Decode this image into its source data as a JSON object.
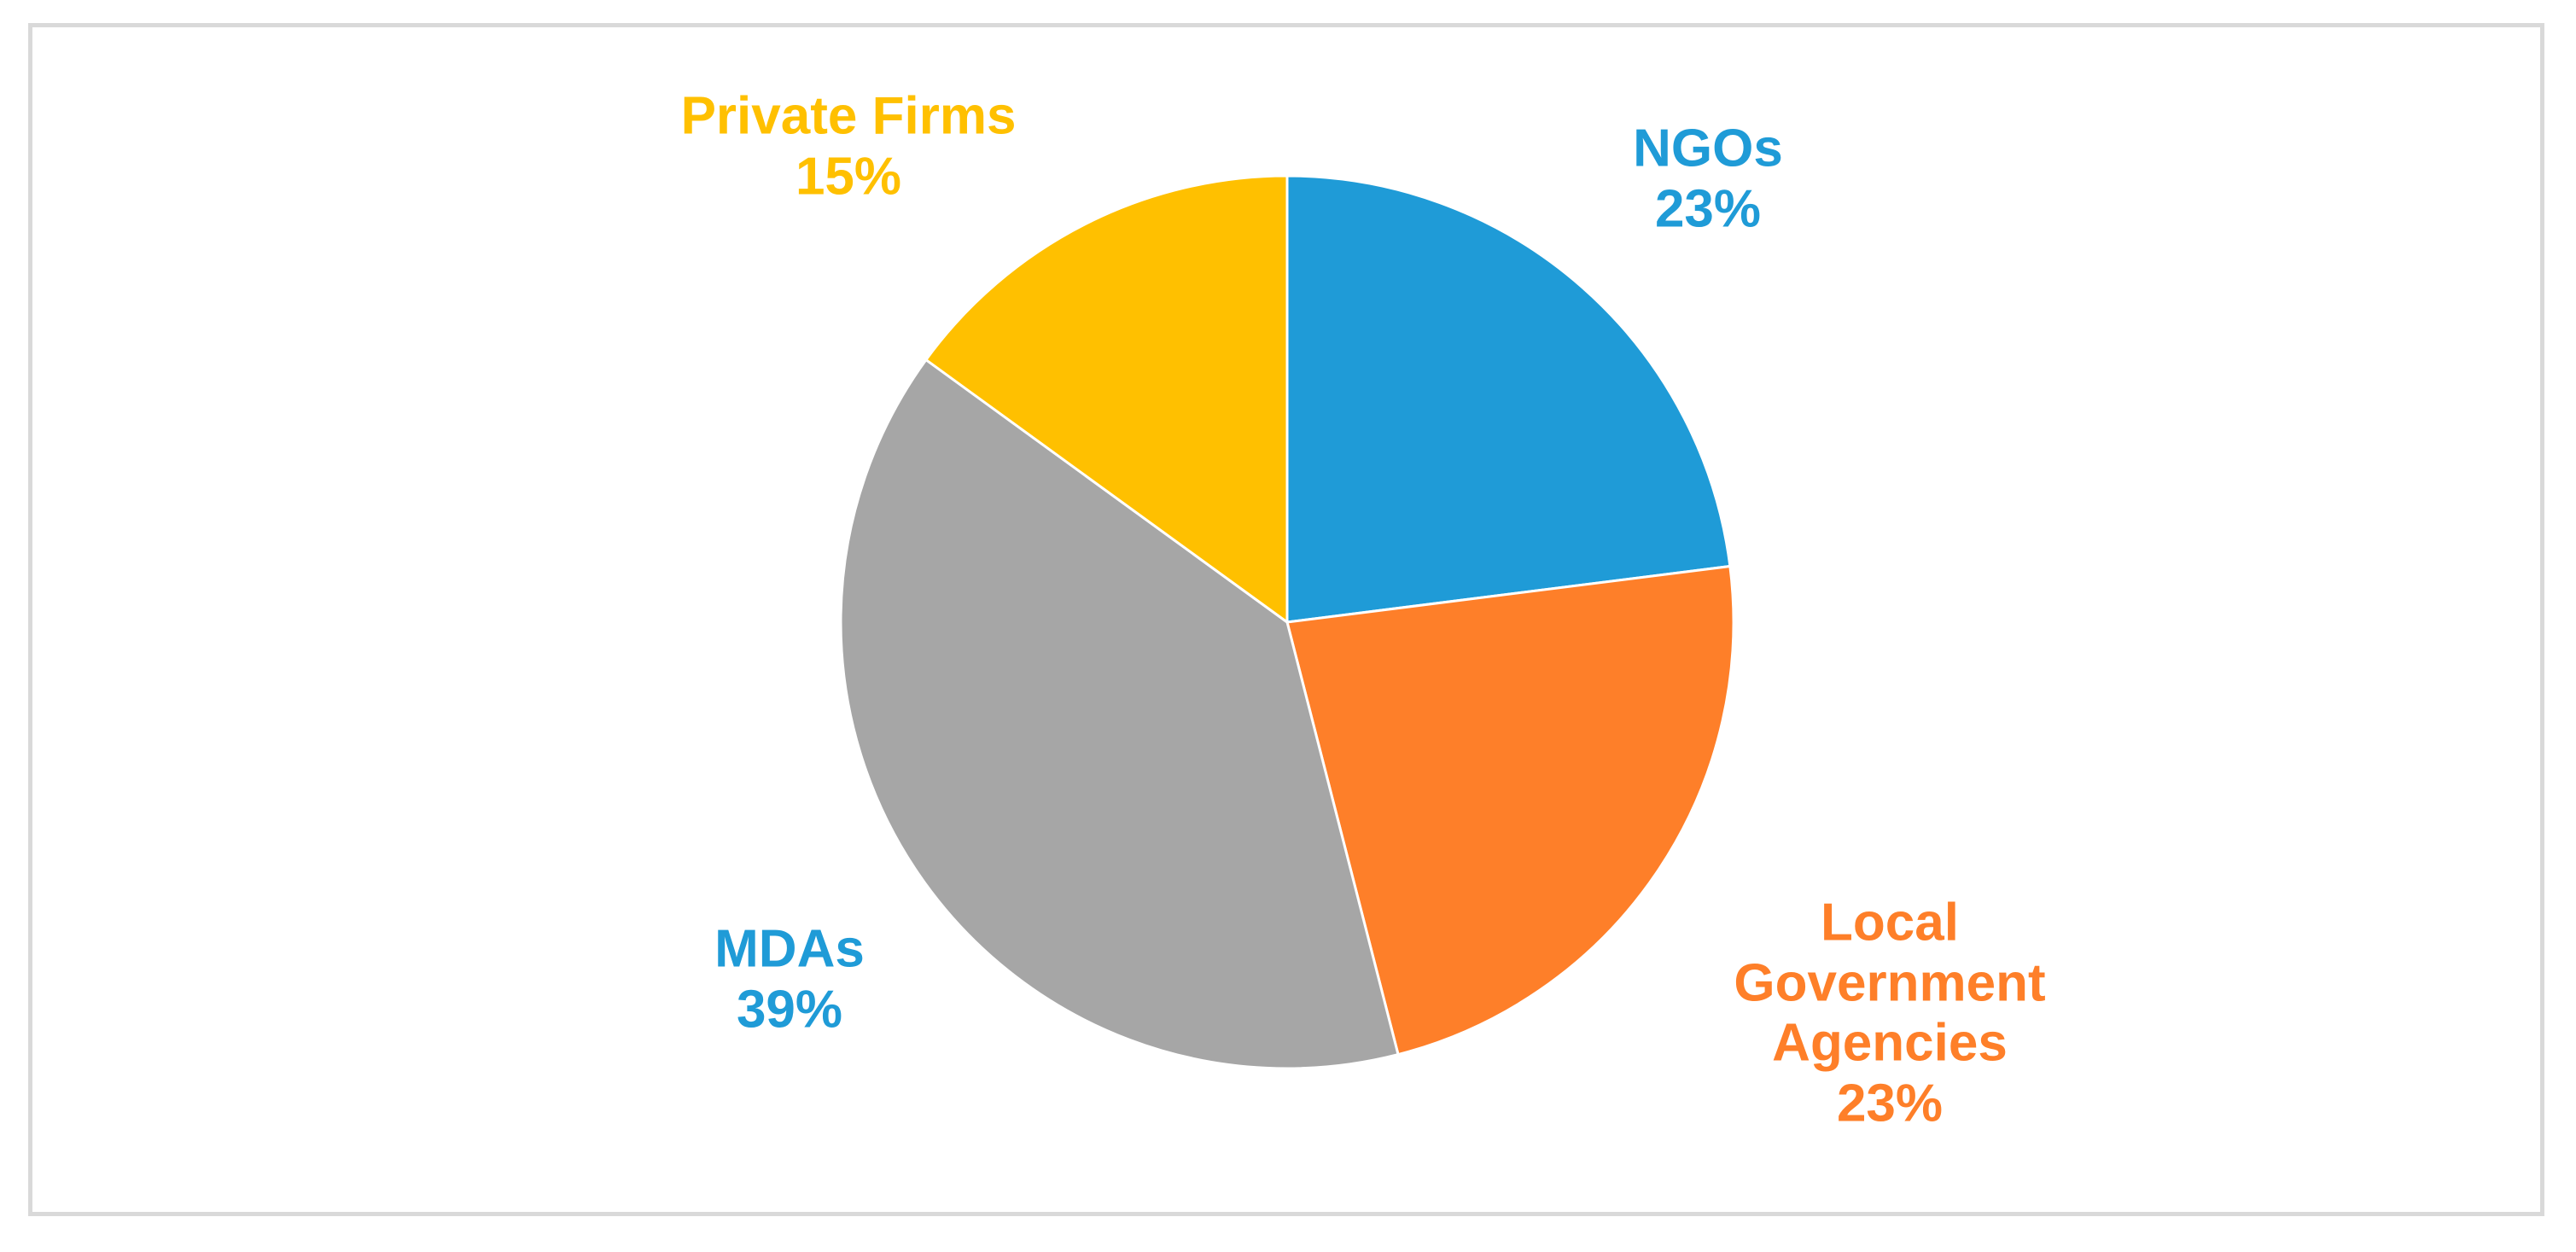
{
  "chart_data": {
    "type": "pie",
    "title": "",
    "start_angle_deg": 0,
    "direction": "clockwise",
    "slices": [
      {
        "label": "NGOs",
        "label_lines": [
          "NGOs"
        ],
        "percent_text": "23%",
        "value": 23,
        "color": "#1f9bd7",
        "label_color": "#1f9bd7"
      },
      {
        "label": "Local Government Agencies",
        "label_lines": [
          "Local",
          "Government",
          "Agencies"
        ],
        "percent_text": "23%",
        "value": 23,
        "color": "#fe7f29",
        "label_color": "#fe7f29"
      },
      {
        "label": "MDAs",
        "label_lines": [
          "MDAs"
        ],
        "percent_text": "39%",
        "value": 39,
        "color": "#a6a6a6",
        "label_color": "#1f9bd7"
      },
      {
        "label": "Private Firms",
        "label_lines": [
          "Private Firms"
        ],
        "percent_text": "15%",
        "value": 15,
        "color": "#ffc000",
        "label_color": "#ffc000"
      }
    ]
  }
}
